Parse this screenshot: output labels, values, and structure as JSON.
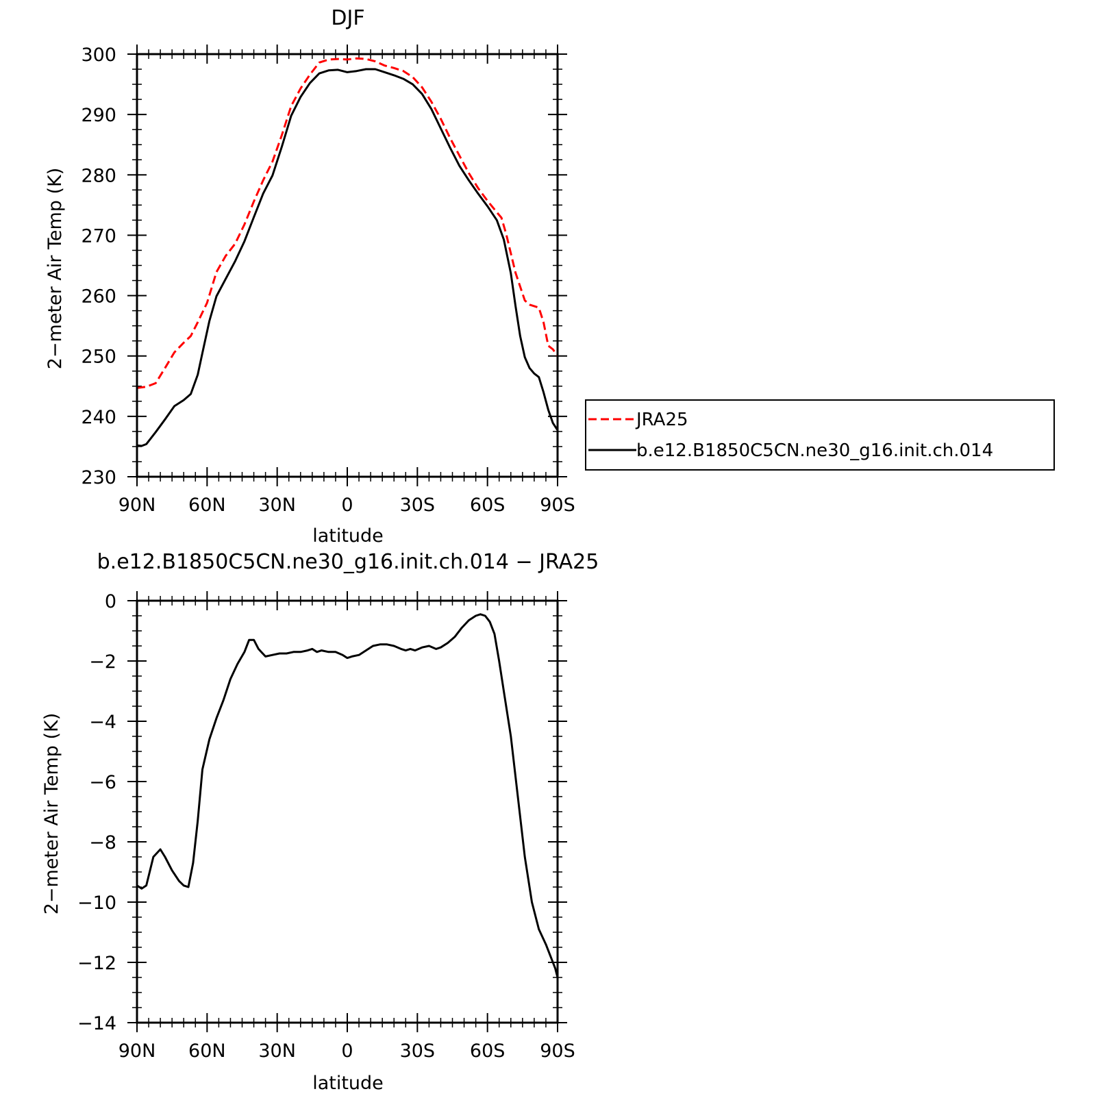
{
  "chart_data": [
    {
      "type": "line",
      "title": "DJF",
      "xlabel": "latitude",
      "ylabel": "2−meter Air Temp (K)",
      "xlim": [
        90,
        -90
      ],
      "ylim": [
        230,
        300
      ],
      "x_tick_values": [
        90,
        60,
        30,
        0,
        -30,
        -60,
        -90
      ],
      "x_tick_labels": [
        "90N",
        "60N",
        "30N",
        "0",
        "30S",
        "60S",
        "90S"
      ],
      "y_tick_values": [
        230,
        240,
        250,
        260,
        270,
        280,
        290,
        300
      ],
      "y_tick_labels": [
        "230",
        "240",
        "250",
        "260",
        "270",
        "280",
        "290",
        "300"
      ],
      "legend_position": "right",
      "series": [
        {
          "name": "JRA25",
          "color": "#ff0000",
          "dash": "dashed",
          "points": [
            [
              90,
              244.7
            ],
            [
              86,
              244.9
            ],
            [
              82,
              245.5
            ],
            [
              78,
              248.0
            ],
            [
              74,
              250.6
            ],
            [
              70,
              252.2
            ],
            [
              67,
              253.3
            ],
            [
              64,
              255.6
            ],
            [
              60,
              258.8
            ],
            [
              56,
              263.9
            ],
            [
              52,
              266.6
            ],
            [
              48,
              268.6
            ],
            [
              44,
              271.8
            ],
            [
              40,
              275.6
            ],
            [
              36,
              279.1
            ],
            [
              32,
              282.2
            ],
            [
              28,
              286.6
            ],
            [
              24,
              291.4
            ],
            [
              20,
              294.3
            ],
            [
              16,
              296.6
            ],
            [
              12,
              298.6
            ],
            [
              8,
              299.1
            ],
            [
              4,
              299.2
            ],
            [
              0,
              299.1
            ],
            [
              -4,
              299.3
            ],
            [
              -8,
              299.2
            ],
            [
              -12,
              298.8
            ],
            [
              -16,
              298.1
            ],
            [
              -20,
              297.7
            ],
            [
              -24,
              297.2
            ],
            [
              -28,
              296.2
            ],
            [
              -32,
              294.5
            ],
            [
              -36,
              292.1
            ],
            [
              -40,
              289.3
            ],
            [
              -44,
              286.1
            ],
            [
              -48,
              283.2
            ],
            [
              -52,
              280.3
            ],
            [
              -56,
              277.8
            ],
            [
              -60,
              275.7
            ],
            [
              -64,
              273.8
            ],
            [
              -66,
              272.9
            ],
            [
              -68,
              270.2
            ],
            [
              -72,
              263.8
            ],
            [
              -76,
              259.2
            ],
            [
              -78,
              258.5
            ],
            [
              -82,
              258.0
            ],
            [
              -84,
              255.6
            ],
            [
              -86,
              251.7
            ],
            [
              -88,
              251.1
            ],
            [
              -90,
              250.0
            ]
          ]
        },
        {
          "name": "b.e12.B1850C5CN.ne30_g16.init.ch.014",
          "color": "#000000",
          "dash": "solid",
          "points": [
            [
              90,
              235.2
            ],
            [
              88,
              235.1
            ],
            [
              86,
              235.4
            ],
            [
              82,
              237.4
            ],
            [
              78,
              239.5
            ],
            [
              74,
              241.7
            ],
            [
              70,
              242.7
            ],
            [
              67,
              243.7
            ],
            [
              64,
              246.9
            ],
            [
              62,
              250.5
            ],
            [
              59,
              255.8
            ],
            [
              56,
              259.9
            ],
            [
              52,
              262.8
            ],
            [
              48,
              265.7
            ],
            [
              44,
              269.0
            ],
            [
              40,
              273.0
            ],
            [
              36,
              276.9
            ],
            [
              32,
              279.9
            ],
            [
              28,
              284.7
            ],
            [
              24,
              289.8
            ],
            [
              20,
              292.9
            ],
            [
              16,
              295.2
            ],
            [
              12,
              296.8
            ],
            [
              8,
              297.3
            ],
            [
              4,
              297.4
            ],
            [
              0,
              297.0
            ],
            [
              -4,
              297.2
            ],
            [
              -8,
              297.5
            ],
            [
              -12,
              297.5
            ],
            [
              -16,
              297.0
            ],
            [
              -20,
              296.5
            ],
            [
              -24,
              295.9
            ],
            [
              -28,
              295.0
            ],
            [
              -32,
              293.4
            ],
            [
              -36,
              290.9
            ],
            [
              -40,
              287.7
            ],
            [
              -44,
              284.5
            ],
            [
              -48,
              281.5
            ],
            [
              -52,
              279.1
            ],
            [
              -56,
              276.9
            ],
            [
              -60,
              274.8
            ],
            [
              -64,
              272.5
            ],
            [
              -67,
              269.3
            ],
            [
              -70,
              263.7
            ],
            [
              -72,
              258.3
            ],
            [
              -74,
              253.3
            ],
            [
              -76,
              249.8
            ],
            [
              -78,
              248.0
            ],
            [
              -80,
              247.1
            ],
            [
              -82,
              246.5
            ],
            [
              -84,
              244.0
            ],
            [
              -86,
              241.1
            ],
            [
              -88,
              238.9
            ],
            [
              -90,
              237.7
            ]
          ]
        }
      ]
    },
    {
      "type": "line",
      "title": "b.e12.B1850C5CN.ne30_g16.init.ch.014 − JRA25",
      "xlabel": "latitude",
      "ylabel": "2−meter Air Temp (K)",
      "xlim": [
        90,
        -90
      ],
      "ylim": [
        -14,
        0
      ],
      "x_tick_values": [
        90,
        60,
        30,
        0,
        -30,
        -60,
        -90
      ],
      "x_tick_labels": [
        "90N",
        "60N",
        "30N",
        "0",
        "30S",
        "60S",
        "90S"
      ],
      "y_tick_values": [
        -14,
        -12,
        -10,
        -8,
        -6,
        -4,
        -2,
        0
      ],
      "y_tick_labels": [
        "−14",
        "−12",
        "−10",
        "−8",
        "−6",
        "−4",
        "−2",
        "0"
      ],
      "series": [
        {
          "color": "#000000",
          "dash": "solid",
          "points": [
            [
              90,
              -9.45
            ],
            [
              88,
              -9.55
            ],
            [
              86,
              -9.45
            ],
            [
              83,
              -8.5
            ],
            [
              80,
              -8.25
            ],
            [
              78,
              -8.5
            ],
            [
              75,
              -8.95
            ],
            [
              72,
              -9.3
            ],
            [
              70,
              -9.45
            ],
            [
              68,
              -9.5
            ],
            [
              66,
              -8.7
            ],
            [
              64,
              -7.3
            ],
            [
              62,
              -5.6
            ],
            [
              59,
              -4.6
            ],
            [
              56,
              -3.9
            ],
            [
              53,
              -3.3
            ],
            [
              50,
              -2.6
            ],
            [
              47,
              -2.1
            ],
            [
              44,
              -1.7
            ],
            [
              42,
              -1.3
            ],
            [
              40,
              -1.3
            ],
            [
              38,
              -1.6
            ],
            [
              35,
              -1.85
            ],
            [
              32,
              -1.8
            ],
            [
              29,
              -1.75
            ],
            [
              26,
              -1.75
            ],
            [
              23,
              -1.7
            ],
            [
              20,
              -1.7
            ],
            [
              17,
              -1.65
            ],
            [
              15,
              -1.6
            ],
            [
              13,
              -1.7
            ],
            [
              11,
              -1.65
            ],
            [
              8,
              -1.7
            ],
            [
              5,
              -1.7
            ],
            [
              2,
              -1.8
            ],
            [
              0,
              -1.9
            ],
            [
              -2,
              -1.85
            ],
            [
              -5,
              -1.8
            ],
            [
              -8,
              -1.65
            ],
            [
              -11,
              -1.5
            ],
            [
              -14,
              -1.45
            ],
            [
              -17,
              -1.45
            ],
            [
              -20,
              -1.5
            ],
            [
              -23,
              -1.6
            ],
            [
              -25,
              -1.65
            ],
            [
              -27,
              -1.6
            ],
            [
              -29,
              -1.65
            ],
            [
              -32,
              -1.55
            ],
            [
              -35,
              -1.5
            ],
            [
              -38,
              -1.6
            ],
            [
              -40,
              -1.55
            ],
            [
              -43,
              -1.4
            ],
            [
              -46,
              -1.2
            ],
            [
              -49,
              -0.9
            ],
            [
              -52,
              -0.65
            ],
            [
              -55,
              -0.5
            ],
            [
              -57,
              -0.45
            ],
            [
              -59,
              -0.5
            ],
            [
              -61,
              -0.7
            ],
            [
              -63,
              -1.1
            ],
            [
              -65,
              -2.0
            ],
            [
              -67,
              -3.0
            ],
            [
              -70,
              -4.5
            ],
            [
              -73,
              -6.5
            ],
            [
              -76,
              -8.5
            ],
            [
              -79,
              -10.0
            ],
            [
              -82,
              -10.9
            ],
            [
              -85,
              -11.4
            ],
            [
              -88,
              -12.0
            ],
            [
              -89,
              -12.2
            ],
            [
              -90,
              -12.5
            ]
          ]
        }
      ]
    }
  ]
}
